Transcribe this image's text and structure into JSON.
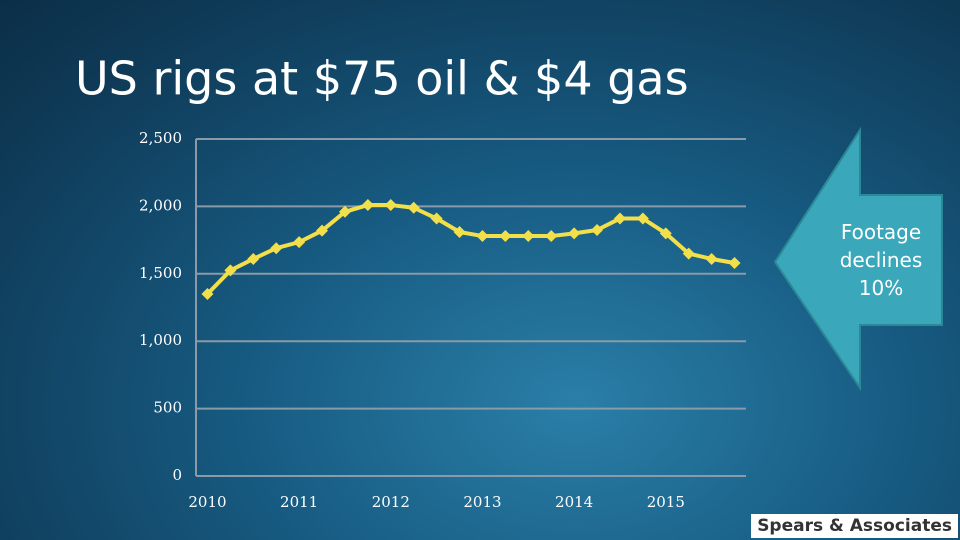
{
  "chart_data": {
    "type": "line",
    "title": "US rigs at $75 oil & $4 gas",
    "categories": [
      "2010",
      null,
      null,
      null,
      "2011",
      null,
      null,
      null,
      "2012",
      null,
      null,
      null,
      "2013",
      null,
      null,
      null,
      "2014",
      null,
      null,
      null,
      "2015",
      null,
      null,
      null
    ],
    "values": [
      1350,
      1525,
      1610,
      1690,
      1735,
      1820,
      1960,
      2010,
      2010,
      1990,
      1910,
      1810,
      1780,
      1780,
      1780,
      1780,
      1800,
      1825,
      1910,
      1910,
      1800,
      1650,
      1610,
      1580
    ],
    "color": "#f2df4a",
    "ylim": [
      0,
      2500
    ],
    "yticks": [
      0,
      500,
      {
        "value": 1000,
        "label": "1,000"
      },
      {
        "value": 1500,
        "label": "1,500"
      },
      {
        "value": 2000,
        "label": "2,000"
      },
      {
        "value": 2500,
        "label": "2,500"
      }
    ],
    "grid": true,
    "annotation": "Footage declines 10%"
  },
  "logo": "Spears & Associates"
}
